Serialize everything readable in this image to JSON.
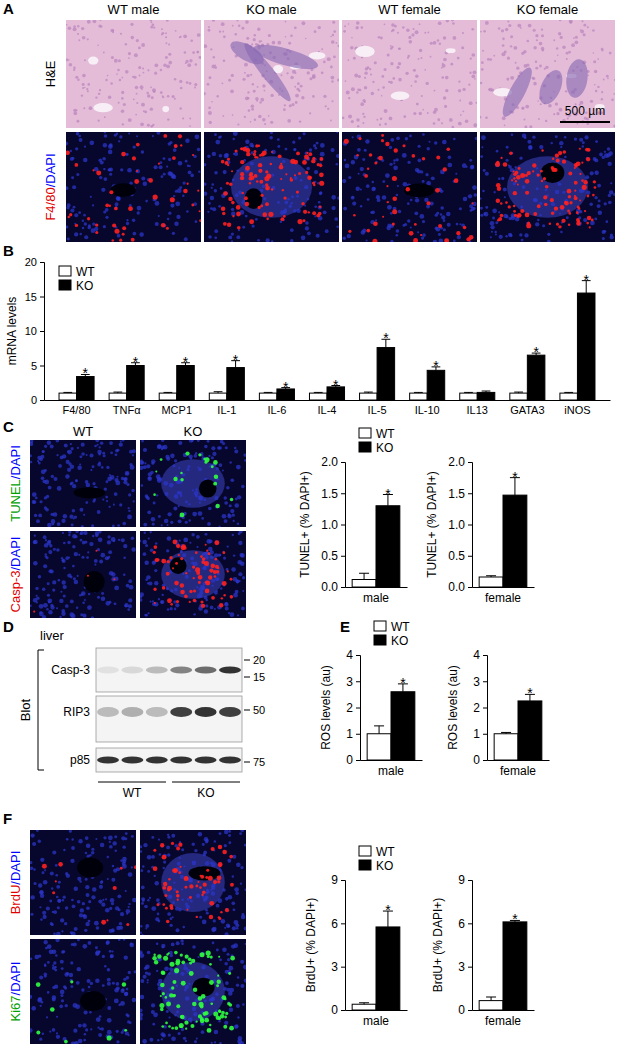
{
  "chart_data": [
    {
      "type": "bar",
      "ylabel": "mRNA levels",
      "categories": [
        "F4/80",
        "TNFα",
        "MCP1",
        "IL-1",
        "IL-6",
        "IL-4",
        "IL-5",
        "IL-10",
        "IL13",
        "GATA3",
        "iNOS"
      ],
      "series": [
        {
          "name": "WT",
          "color": "#ffffff",
          "values": [
            1,
            1,
            1,
            1,
            1,
            1,
            1,
            1,
            1,
            1,
            1
          ],
          "errors": [
            0.1,
            0.15,
            0.1,
            0.2,
            0.1,
            0.1,
            0.15,
            0.1,
            0.1,
            0.15,
            0.1
          ]
        },
        {
          "name": "KO",
          "color": "#000000",
          "values": [
            3.4,
            5,
            5,
            4.7,
            1.6,
            1.9,
            7.6,
            4.3,
            1.1,
            6.5,
            15.5
          ],
          "errors": [
            0.3,
            0.4,
            0.4,
            1.0,
            0.2,
            0.2,
            1.2,
            0.5,
            0.2,
            0.3,
            1.8
          ]
        }
      ],
      "annotations": [
        "*",
        "*",
        "*",
        "*",
        "*",
        "*",
        "*",
        "*",
        null,
        "*",
        "*"
      ],
      "ylim": [
        0,
        20
      ],
      "yticks": [
        0,
        5,
        10,
        15,
        20
      ],
      "legend": "upper left"
    },
    {
      "type": "bar",
      "ylabel": "TUNEL+ (% DAPI+)",
      "categories": [
        "male"
      ],
      "series": [
        {
          "name": "WT",
          "color": "#ffffff",
          "values": [
            0.12
          ],
          "errors": [
            0.1
          ]
        },
        {
          "name": "KO",
          "color": "#000000",
          "values": [
            1.3
          ],
          "errors": [
            0.18
          ]
        }
      ],
      "annotations": [
        "*"
      ],
      "ylim": [
        0,
        2
      ],
      "yticks": [
        {
          "value": 0,
          "label": "0.0"
        },
        {
          "value": 0.5,
          "label": "0.5"
        },
        {
          "value": 1,
          "label": "1.0"
        },
        {
          "value": 1.5,
          "label": "1.5"
        },
        {
          "value": 2,
          "label": "2.0"
        }
      ],
      "legend": "top"
    },
    {
      "type": "bar",
      "ylabel": "TUNEL+ (% DAPI+)",
      "categories": [
        "female"
      ],
      "series": [
        {
          "color": "#ffffff",
          "values": [
            0.16
          ],
          "errors": [
            0.02
          ]
        },
        {
          "color": "#000000",
          "values": [
            1.47
          ],
          "errors": [
            0.28
          ]
        }
      ],
      "annotations": [
        "*"
      ],
      "ylim": [
        0,
        2
      ],
      "yticks": [
        {
          "value": 0,
          "label": "0.0"
        },
        {
          "value": 0.5,
          "label": "0.5"
        },
        {
          "value": 1,
          "label": "1.0"
        },
        {
          "value": 1.5,
          "label": "1.5"
        },
        {
          "value": 2,
          "label": "2.0"
        }
      ]
    },
    {
      "type": "bar",
      "ylabel": "ROS levels (au)",
      "categories": [
        "male"
      ],
      "series": [
        {
          "name": "WT",
          "color": "#ffffff",
          "values": [
            1.0
          ],
          "errors": [
            0.3
          ]
        },
        {
          "name": "KO",
          "color": "#000000",
          "values": [
            2.6
          ],
          "errors": [
            0.3
          ]
        }
      ],
      "annotations": [
        "*"
      ],
      "ylim": [
        0,
        4
      ],
      "yticks": [
        0,
        1,
        2,
        3,
        4
      ],
      "legend": "top"
    },
    {
      "type": "bar",
      "ylabel": "ROS levels (au)",
      "categories": [
        "female"
      ],
      "series": [
        {
          "color": "#ffffff",
          "values": [
            1.0
          ],
          "errors": [
            0.05
          ]
        },
        {
          "color": "#000000",
          "values": [
            2.25
          ],
          "errors": [
            0.25
          ]
        }
      ],
      "annotations": [
        "*"
      ],
      "ylim": [
        0,
        4
      ],
      "yticks": [
        0,
        1,
        2,
        3,
        4
      ]
    },
    {
      "type": "bar",
      "ylabel": "BrdU+ (% DAPI+)",
      "categories": [
        "male"
      ],
      "series": [
        {
          "name": "WT",
          "color": "#ffffff",
          "values": [
            0.4
          ],
          "errors": [
            0.1
          ]
        },
        {
          "name": "KO",
          "color": "#000000",
          "values": [
            5.75
          ],
          "errors": [
            1.1
          ]
        }
      ],
      "annotations": [
        "*"
      ],
      "ylim": [
        0,
        9
      ],
      "yticks": [
        0,
        3,
        6,
        9
      ],
      "legend": "top"
    },
    {
      "type": "bar",
      "ylabel": "BrdU+ (% DAPI+)",
      "categories": [
        "female"
      ],
      "series": [
        {
          "color": "#ffffff",
          "values": [
            0.65
          ],
          "errors": [
            0.25
          ]
        },
        {
          "color": "#000000",
          "values": [
            6.1
          ],
          "errors": [
            0.1
          ]
        }
      ],
      "annotations": [
        "*"
      ],
      "ylim": [
        0,
        9
      ],
      "yticks": [
        0,
        3,
        6,
        9
      ]
    }
  ],
  "figure": {
    "panel_letters": [
      "A",
      "B",
      "C",
      "D",
      "E",
      "F"
    ],
    "A": {
      "columns": [
        "WT male",
        "KO male",
        "WT female",
        "KO female"
      ],
      "rows": [
        [
          {
            "text": "H&E",
            "color": "#000000"
          }
        ],
        [
          {
            "text": "F4/80",
            "color": "#e00000"
          },
          {
            "text": "/DAPI",
            "color": "#0000ff"
          }
        ]
      ],
      "scale_bar": "500 µm"
    },
    "C": {
      "columns": [
        "WT",
        "KO"
      ],
      "rows": [
        [
          {
            "text": "TUNEL",
            "color": "#00a000"
          },
          {
            "text": "/DAPI",
            "color": "#0000ff"
          }
        ],
        [
          {
            "text": "Casp-3",
            "color": "#e00000"
          },
          {
            "text": "/DAPI",
            "color": "#0000ff"
          }
        ]
      ]
    },
    "D": {
      "tissue": "liver",
      "method": "Blot",
      "rows": [
        "Casp-3",
        "RIP3",
        "p85"
      ],
      "markers": [
        [
          20,
          15
        ],
        [
          50
        ],
        [
          75
        ]
      ],
      "groups": [
        "WT",
        "KO"
      ]
    },
    "F": {
      "rows": [
        [
          {
            "text": "BrdU",
            "color": "#e00000"
          },
          {
            "text": "/DAPI",
            "color": "#0000ff"
          }
        ],
        [
          {
            "text": "Ki67",
            "color": "#00a000"
          },
          {
            "text": "/DAPI",
            "color": "#0000ff"
          }
        ]
      ]
    }
  }
}
